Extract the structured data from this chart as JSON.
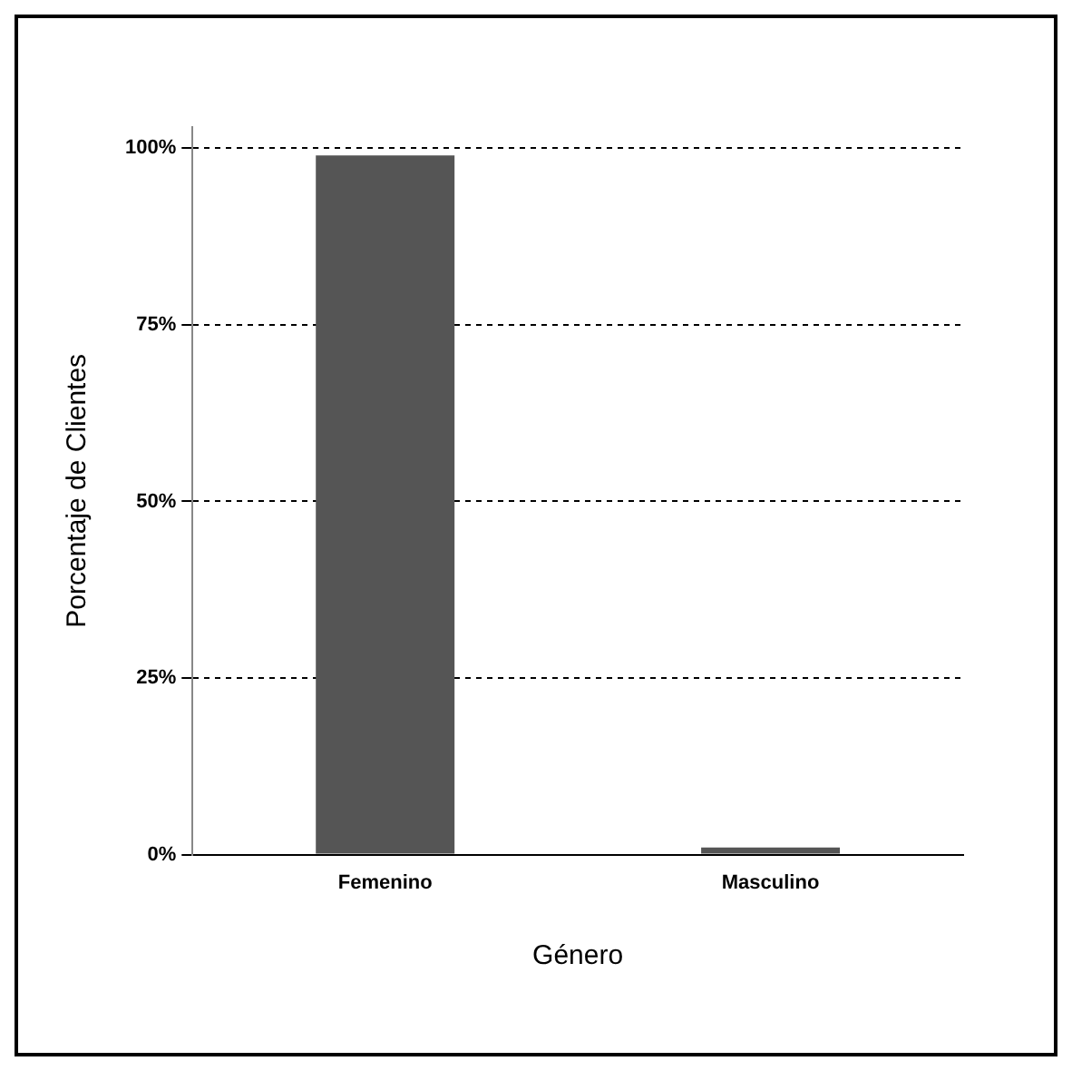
{
  "chart_data": {
    "type": "bar",
    "xlabel": "Género",
    "ylabel": "Porcentaje de Clientes",
    "categories": [
      "Femenino",
      "Masculino"
    ],
    "values": [
      99,
      1
    ],
    "color": "#555555",
    "ylim": [
      0,
      103
    ],
    "yticks": [
      {
        "value": 0,
        "label": "0%"
      },
      {
        "value": 25,
        "label": "25%"
      },
      {
        "value": 50,
        "label": "50%"
      },
      {
        "value": 75,
        "label": "75%"
      },
      {
        "value": 100,
        "label": "100%"
      }
    ],
    "grid": "y",
    "legend": false
  }
}
